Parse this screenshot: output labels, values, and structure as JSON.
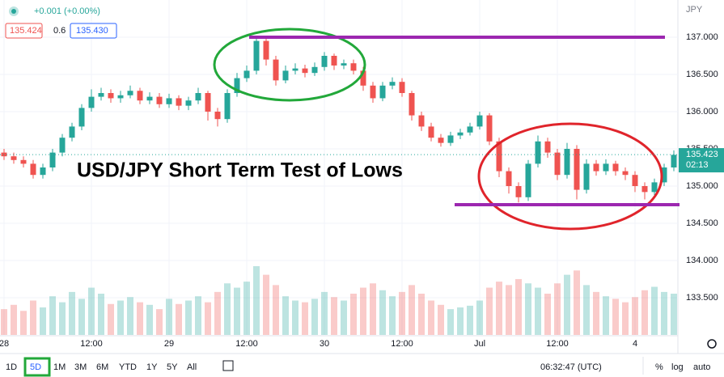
{
  "chart_data": {
    "type": "candlestick",
    "title": "USD/JPY Short Term Test of Lows",
    "currency": "JPY",
    "up_color": "#26a69a",
    "down_color": "#ef5350",
    "level_color": "#9c27b0",
    "ylim": [
      133.0,
      137.5
    ],
    "yticks": [
      {
        "value": 133.5,
        "label": "133.500"
      },
      {
        "value": 134.0,
        "label": "134.000"
      },
      {
        "value": 134.5,
        "label": "134.500"
      },
      {
        "value": 135.0,
        "label": "135.000"
      },
      {
        "value": 135.5,
        "label": "135.500"
      },
      {
        "value": 136.0,
        "label": "136.000"
      },
      {
        "value": 136.5,
        "label": "136.500"
      },
      {
        "value": 137.0,
        "label": "137.000"
      }
    ],
    "categories": [
      "28",
      null,
      null,
      null,
      null,
      null,
      null,
      null,
      null,
      "12:00",
      null,
      null,
      null,
      null,
      null,
      null,
      null,
      "29",
      null,
      null,
      null,
      null,
      null,
      null,
      null,
      "12:00",
      null,
      null,
      null,
      null,
      null,
      null,
      null,
      "30",
      null,
      null,
      null,
      null,
      null,
      null,
      null,
      "12:00",
      null,
      null,
      null,
      null,
      null,
      null,
      null,
      "Jul",
      null,
      null,
      null,
      null,
      null,
      null,
      null,
      "12:00",
      null,
      null,
      null,
      null,
      null,
      null,
      null,
      "4",
      null,
      null,
      null,
      null
    ],
    "candles": [
      [
        135.45,
        135.5,
        135.35,
        135.4
      ],
      [
        135.4,
        135.45,
        135.3,
        135.35
      ],
      [
        135.35,
        135.4,
        135.25,
        135.3
      ],
      [
        135.3,
        135.35,
        135.1,
        135.15
      ],
      [
        135.15,
        135.3,
        135.1,
        135.25
      ],
      [
        135.25,
        135.5,
        135.2,
        135.45
      ],
      [
        135.45,
        135.7,
        135.4,
        135.65
      ],
      [
        135.65,
        135.85,
        135.6,
        135.8
      ],
      [
        135.8,
        136.1,
        135.75,
        136.05
      ],
      [
        136.05,
        136.3,
        136.0,
        136.2
      ],
      [
        136.2,
        136.32,
        136.15,
        136.25
      ],
      [
        136.25,
        136.3,
        136.12,
        136.18
      ],
      [
        136.18,
        136.28,
        136.12,
        136.22
      ],
      [
        136.22,
        136.35,
        136.18,
        136.28
      ],
      [
        136.28,
        136.32,
        136.1,
        136.15
      ],
      [
        136.15,
        136.26,
        136.1,
        136.2
      ],
      [
        136.2,
        136.25,
        136.05,
        136.1
      ],
      [
        136.1,
        136.24,
        136.05,
        136.18
      ],
      [
        136.18,
        136.22,
        136.02,
        136.08
      ],
      [
        136.08,
        136.2,
        136.02,
        136.15
      ],
      [
        136.15,
        136.32,
        136.1,
        136.25
      ],
      [
        136.25,
        136.28,
        135.88,
        136.0
      ],
      [
        136.0,
        136.05,
        135.8,
        135.9
      ],
      [
        135.9,
        136.3,
        135.85,
        136.25
      ],
      [
        136.25,
        136.52,
        136.2,
        136.45
      ],
      [
        136.45,
        136.62,
        136.4,
        136.55
      ],
      [
        136.55,
        137.0,
        136.5,
        136.95
      ],
      [
        136.95,
        136.98,
        136.62,
        136.7
      ],
      [
        136.7,
        136.75,
        136.35,
        136.42
      ],
      [
        136.42,
        136.62,
        136.38,
        136.55
      ],
      [
        136.55,
        136.65,
        136.5,
        136.58
      ],
      [
        136.58,
        136.63,
        136.46,
        136.52
      ],
      [
        136.52,
        136.66,
        136.48,
        136.6
      ],
      [
        136.6,
        136.8,
        136.55,
        136.75
      ],
      [
        136.75,
        136.78,
        136.56,
        136.62
      ],
      [
        136.62,
        136.7,
        136.57,
        136.65
      ],
      [
        136.65,
        136.7,
        136.5,
        136.55
      ],
      [
        136.55,
        136.6,
        136.28,
        136.35
      ],
      [
        136.35,
        136.4,
        136.12,
        136.18
      ],
      [
        136.18,
        136.4,
        136.14,
        136.35
      ],
      [
        136.35,
        136.46,
        136.3,
        136.4
      ],
      [
        136.4,
        136.45,
        136.2,
        136.25
      ],
      [
        136.25,
        136.28,
        135.88,
        135.95
      ],
      [
        135.95,
        136.0,
        135.74,
        135.8
      ],
      [
        135.8,
        135.85,
        135.6,
        135.65
      ],
      [
        135.65,
        135.7,
        135.53,
        135.58
      ],
      [
        135.58,
        135.73,
        135.54,
        135.68
      ],
      [
        135.68,
        135.77,
        135.63,
        135.72
      ],
      [
        135.72,
        135.85,
        135.68,
        135.8
      ],
      [
        135.8,
        136.0,
        135.76,
        135.95
      ],
      [
        135.95,
        135.98,
        135.55,
        135.6
      ],
      [
        135.6,
        135.65,
        135.12,
        135.2
      ],
      [
        135.2,
        135.25,
        134.9,
        135.0
      ],
      [
        135.0,
        135.05,
        134.78,
        134.85
      ],
      [
        134.85,
        135.35,
        134.8,
        135.3
      ],
      [
        135.3,
        135.68,
        135.25,
        135.6
      ],
      [
        135.6,
        135.65,
        135.38,
        135.45
      ],
      [
        135.45,
        135.5,
        135.08,
        135.15
      ],
      [
        135.15,
        135.58,
        135.1,
        135.5
      ],
      [
        135.5,
        135.55,
        134.82,
        134.95
      ],
      [
        134.95,
        135.36,
        134.9,
        135.3
      ],
      [
        135.3,
        135.35,
        135.14,
        135.2
      ],
      [
        135.2,
        135.36,
        135.15,
        135.3
      ],
      [
        135.3,
        135.34,
        135.14,
        135.2
      ],
      [
        135.2,
        135.25,
        135.08,
        135.15
      ],
      [
        135.15,
        135.2,
        134.92,
        135.0
      ],
      [
        135.0,
        135.05,
        134.82,
        134.92
      ],
      [
        134.92,
        135.1,
        134.88,
        135.05
      ],
      [
        135.05,
        135.3,
        135.0,
        135.25
      ],
      [
        135.25,
        135.48,
        135.2,
        135.42
      ]
    ],
    "volume": [
      30,
      35,
      28,
      40,
      32,
      45,
      38,
      50,
      42,
      55,
      48,
      36,
      40,
      44,
      38,
      35,
      30,
      42,
      36,
      40,
      45,
      38,
      50,
      60,
      55,
      62,
      80,
      70,
      58,
      45,
      40,
      38,
      42,
      50,
      44,
      40,
      48,
      55,
      60,
      52,
      45,
      50,
      58,
      48,
      40,
      35,
      30,
      32,
      34,
      40,
      55,
      62,
      58,
      65,
      60,
      55,
      48,
      60,
      70,
      75,
      58,
      50,
      45,
      42,
      38,
      44,
      52,
      56,
      50,
      48
    ],
    "levels": [
      137.0,
      134.75
    ],
    "last_price": 135.423,
    "last_price_label": "135.423",
    "countdown": "02:13"
  },
  "header": {
    "change": "+0.001 (+0.00%)",
    "bid": "135.424",
    "spread": "0.6",
    "ask": "135.430"
  },
  "toolbar": {
    "ranges": [
      "1D",
      "5D",
      "1M",
      "3M",
      "6M",
      "YTD",
      "1Y",
      "5Y",
      "All"
    ],
    "selected": 1,
    "clock": "06:32:47 (UTC)",
    "percent": "%",
    "log": "log",
    "auto": "auto"
  }
}
